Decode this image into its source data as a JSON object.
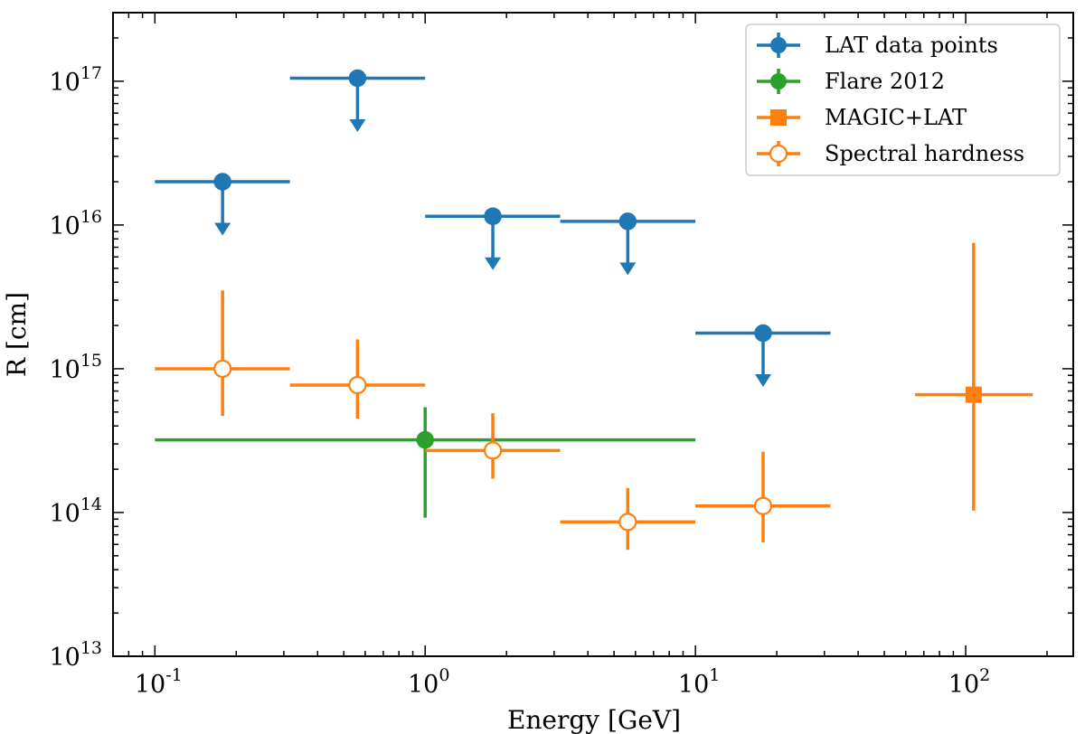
{
  "chart_data": {
    "type": "scatter",
    "title": "",
    "xlabel": "Energy [GeV]",
    "ylabel": "R [cm]",
    "xscale": "log",
    "yscale": "log",
    "xlim": [
      0.07,
      250
    ],
    "ylim": [
      10000000000000.0,
      3e+17
    ],
    "x_ticks": [
      {
        "value": 0.1,
        "base": "10",
        "exp": "-1"
      },
      {
        "value": 1,
        "base": "10",
        "exp": "0"
      },
      {
        "value": 10,
        "base": "10",
        "exp": "1"
      },
      {
        "value": 100,
        "base": "10",
        "exp": "2"
      }
    ],
    "y_ticks": [
      {
        "value": 10000000000000.0,
        "base": "10",
        "exp": "13"
      },
      {
        "value": 100000000000000.0,
        "base": "10",
        "exp": "14"
      },
      {
        "value": 1000000000000000.0,
        "base": "10",
        "exp": "15"
      },
      {
        "value": 1e+16,
        "base": "10",
        "exp": "16"
      },
      {
        "value": 1e+17,
        "base": "10",
        "exp": "17"
      }
    ],
    "grid": false,
    "legend_position": "top-right",
    "series": [
      {
        "name": "LAT data points",
        "color": "#1f77b4",
        "marker": "circle-filled",
        "upper_limits": true,
        "points": [
          {
            "x": 0.178,
            "y": 2e+16,
            "xmin": 0.1,
            "xmax": 0.316
          },
          {
            "x": 0.562,
            "y": 1.05e+17,
            "xmin": 0.316,
            "xmax": 1.0
          },
          {
            "x": 1.78,
            "y": 1.15e+16,
            "xmin": 1.0,
            "xmax": 3.16
          },
          {
            "x": 5.62,
            "y": 1.06e+16,
            "xmin": 3.16,
            "xmax": 10.0
          },
          {
            "x": 17.8,
            "y": 1770000000000000.0,
            "xmin": 10.0,
            "xmax": 31.6
          }
        ]
      },
      {
        "name": "Flare 2012",
        "color": "#2ca02c",
        "marker": "circle-filled",
        "upper_limits": false,
        "points": [
          {
            "x": 1.0,
            "y": 320000000000000.0,
            "xmin": 0.1,
            "xmax": 10.0,
            "ymin": 92000000000000.0,
            "ymax": 540000000000000.0
          }
        ]
      },
      {
        "name": "MAGIC+LAT",
        "color": "#ff7f0e",
        "marker": "square-filled",
        "upper_limits": false,
        "points": [
          {
            "x": 107,
            "y": 660000000000000.0,
            "xmin": 65,
            "xmax": 177,
            "ymin": 103000000000000.0,
            "ymax": 7500000000000000.0
          }
        ]
      },
      {
        "name": "Spectral hardness",
        "color": "#ff7f0e",
        "marker": "circle-open",
        "upper_limits": false,
        "points": [
          {
            "x": 0.178,
            "y": 1000000000000000.0,
            "xmin": 0.1,
            "xmax": 0.316,
            "ymin": 470000000000000.0,
            "ymax": 3500000000000000.0
          },
          {
            "x": 0.562,
            "y": 770000000000000.0,
            "xmin": 0.316,
            "xmax": 1.0,
            "ymin": 450000000000000.0,
            "ymax": 1600000000000000.0
          },
          {
            "x": 1.78,
            "y": 270000000000000.0,
            "xmin": 1.0,
            "xmax": 3.16,
            "ymin": 172000000000000.0,
            "ymax": 490000000000000.0
          },
          {
            "x": 5.62,
            "y": 86000000000000.0,
            "xmin": 3.16,
            "xmax": 10.0,
            "ymin": 55000000000000.0,
            "ymax": 148000000000000.0
          },
          {
            "x": 17.8,
            "y": 111000000000000.0,
            "xmin": 10.0,
            "xmax": 31.6,
            "ymin": 62000000000000.0,
            "ymax": 265000000000000.0
          }
        ]
      }
    ]
  }
}
